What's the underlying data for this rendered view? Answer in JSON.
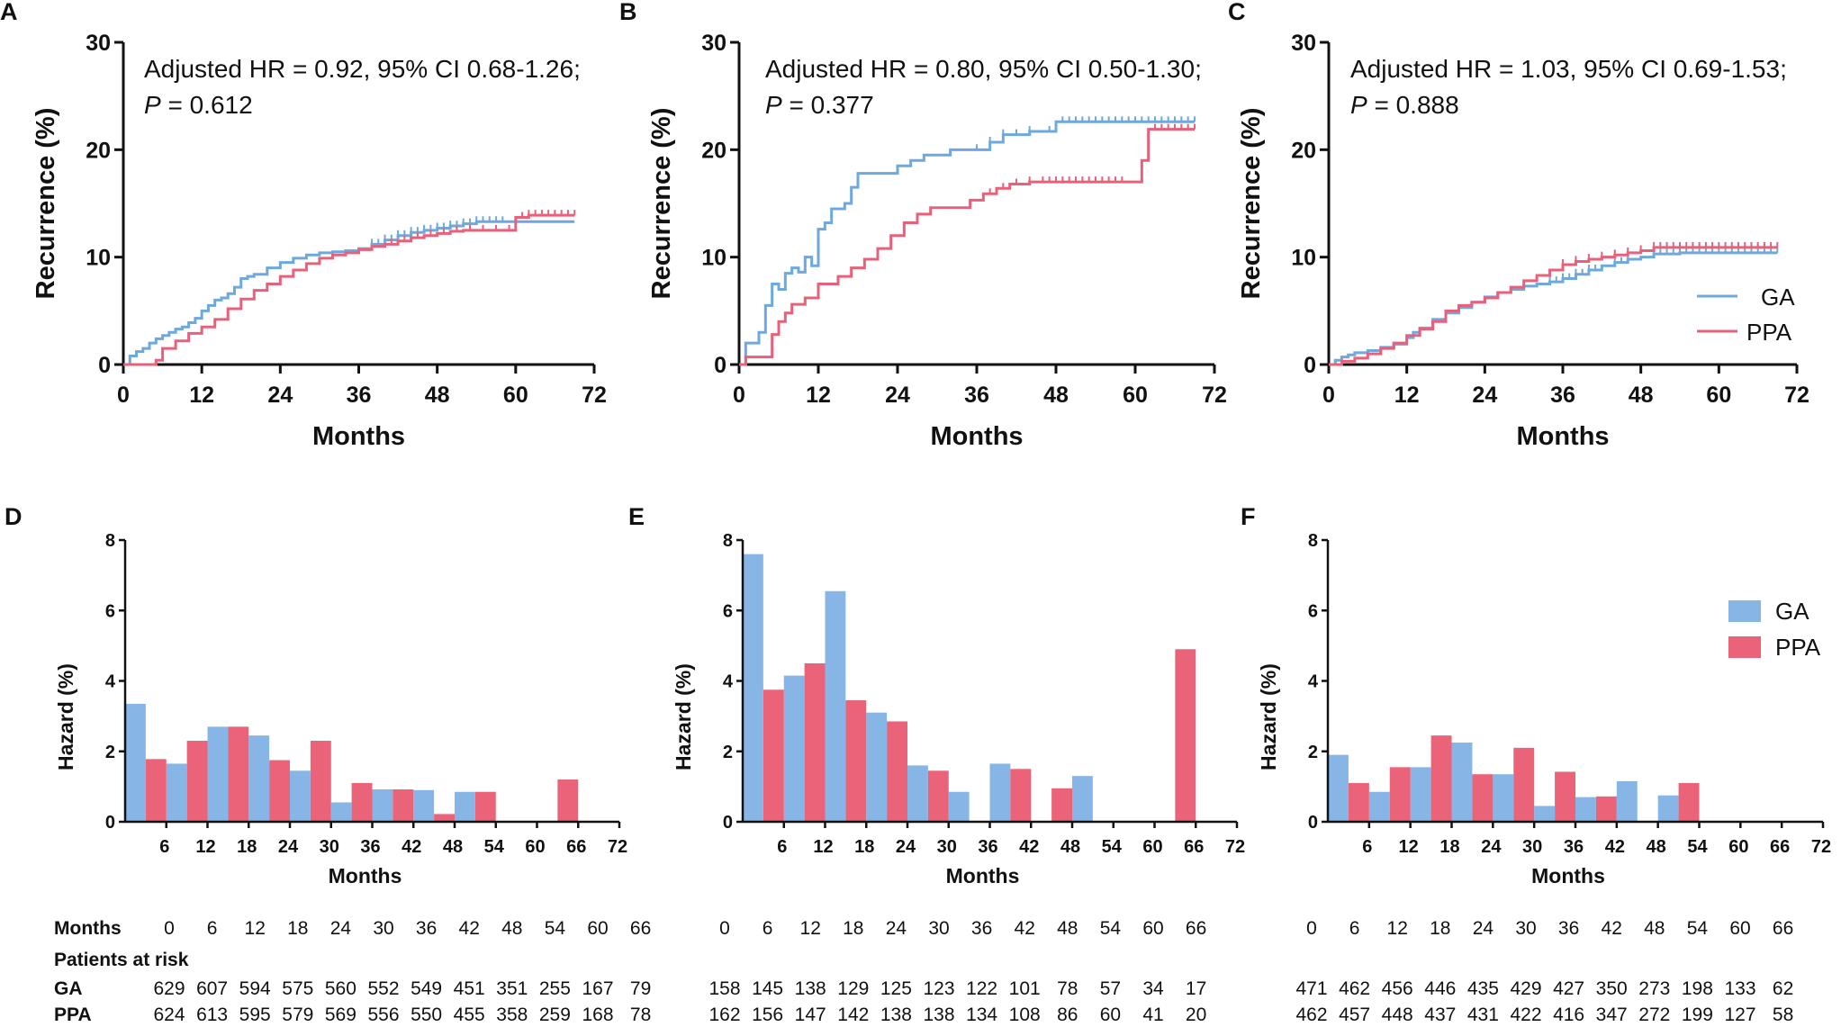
{
  "colors": {
    "ga": "#6FA8DC",
    "ppa": "#E8607A",
    "ga_bar": "#87B6E6",
    "ppa_bar": "#EB6378",
    "axis": "#111111"
  },
  "legend": {
    "ga_label": "GA",
    "ppa_label": "PPA"
  },
  "chart_data": [
    {
      "panel": "A",
      "type": "line",
      "title": "",
      "xlabel": "Months",
      "ylabel": "Recurrence (%)",
      "xlim": [
        0,
        72
      ],
      "ylim": [
        0,
        30
      ],
      "xticks": [
        0,
        12,
        24,
        36,
        48,
        60,
        72
      ],
      "yticks": [
        0,
        10,
        20,
        30
      ],
      "annotation": {
        "line1": "Adjusted HR = 0.92, 95% CI 0.68-1.26;",
        "p_label": "P",
        "p_rest": " = 0.612"
      },
      "series": [
        {
          "name": "GA",
          "step": true,
          "x": [
            0,
            1,
            2,
            3,
            4,
            5,
            6,
            7,
            8,
            9,
            10,
            11,
            12,
            13,
            14,
            15,
            16,
            17,
            18,
            19,
            20,
            22,
            24,
            26,
            28,
            30,
            32,
            34,
            36,
            38,
            40,
            42,
            44,
            46,
            48,
            50,
            52,
            54,
            56,
            58,
            60,
            63,
            66,
            69
          ],
          "y": [
            0,
            0.8,
            1.2,
            1.5,
            2,
            2.4,
            2.7,
            3,
            3.3,
            3.5,
            3.9,
            4.3,
            5,
            5.5,
            6,
            6.2,
            6.6,
            7.2,
            8,
            8.2,
            8.4,
            9,
            9.5,
            9.9,
            10.2,
            10.4,
            10.5,
            10.6,
            10.8,
            11.2,
            11.6,
            12,
            12.3,
            12.5,
            12.7,
            12.9,
            13.1,
            13.3,
            13.3,
            13.3,
            13.3,
            13.3,
            13.3,
            13.3
          ],
          "censored": [
            38,
            39,
            40,
            41,
            42,
            43,
            44,
            45,
            46,
            47,
            48,
            49,
            50,
            51,
            52,
            53,
            54,
            55,
            56,
            57,
            58
          ]
        },
        {
          "name": "PPA",
          "step": true,
          "x": [
            0,
            5,
            6,
            8,
            10,
            12,
            14,
            16,
            18,
            20,
            22,
            24,
            26,
            28,
            30,
            32,
            34,
            36,
            38,
            40,
            42,
            44,
            46,
            48,
            50,
            52,
            56,
            60,
            62,
            69
          ],
          "y": [
            0,
            0.4,
            1.5,
            2.2,
            2.9,
            3.5,
            4.2,
            5.2,
            6.1,
            6.9,
            7.5,
            8.2,
            8.8,
            9.4,
            9.9,
            10.2,
            10.4,
            10.7,
            11,
            11.2,
            11.5,
            11.8,
            12,
            12.2,
            12.4,
            12.5,
            12.5,
            13.7,
            13.9,
            13.9
          ],
          "censored": [
            41,
            43,
            45,
            47,
            49,
            51,
            53,
            55,
            57,
            59,
            61,
            62,
            63,
            64,
            65,
            66,
            67,
            68,
            69
          ]
        }
      ]
    },
    {
      "panel": "B",
      "type": "line",
      "title": "",
      "xlabel": "Months",
      "ylabel": "Recurrence (%)",
      "xlim": [
        0,
        72
      ],
      "ylim": [
        0,
        30
      ],
      "xticks": [
        0,
        12,
        24,
        36,
        48,
        60,
        72
      ],
      "yticks": [
        0,
        10,
        20,
        30
      ],
      "annotation": {
        "line1": "Adjusted HR = 0.80, 95% CI 0.50-1.30;",
        "p_label": "P",
        "p_rest": " = 0.377"
      },
      "series": [
        {
          "name": "GA",
          "step": true,
          "x": [
            0,
            1,
            3,
            4,
            5,
            6,
            7,
            8,
            9,
            10,
            11,
            12,
            13,
            14,
            16,
            17,
            18,
            20,
            24,
            26,
            28,
            32,
            36,
            38,
            40,
            44,
            48,
            69
          ],
          "y": [
            0,
            2,
            3,
            5.5,
            7.5,
            7,
            8.5,
            9,
            8.6,
            10,
            9.2,
            12.6,
            13.2,
            14.5,
            15,
            16.5,
            17.8,
            17.8,
            18.5,
            19,
            19.5,
            20,
            20,
            20.7,
            21.4,
            21.7,
            22.6,
            22.6
          ],
          "censored": [
            36,
            38,
            40,
            42,
            44,
            47,
            49,
            50,
            51,
            52,
            53,
            54,
            55,
            56,
            57,
            58,
            59,
            60,
            61,
            62,
            63,
            64,
            65,
            66,
            67,
            68,
            69
          ]
        },
        {
          "name": "PPA",
          "step": true,
          "x": [
            0,
            1,
            5,
            6,
            7,
            8,
            10,
            12,
            15,
            17,
            19,
            21,
            23,
            25,
            27,
            29,
            31,
            35,
            37,
            39,
            41,
            44,
            46,
            61,
            62,
            69
          ],
          "y": [
            0,
            0.7,
            2.8,
            4,
            4.8,
            5.6,
            6.2,
            7.5,
            8.2,
            9,
            9.8,
            10.8,
            12,
            13.2,
            14,
            14.6,
            14.6,
            15.3,
            15.9,
            16.4,
            16.8,
            17,
            17,
            19,
            21.9,
            21.9
          ],
          "censored": [
            38,
            40,
            42,
            44,
            46,
            47,
            48,
            49,
            50,
            51,
            52,
            53,
            54,
            55,
            56,
            57,
            58,
            63,
            64,
            65,
            66,
            67,
            68,
            69
          ]
        }
      ]
    },
    {
      "panel": "C",
      "type": "line",
      "title": "",
      "xlabel": "Months",
      "ylabel": "Recurrence (%)",
      "xlim": [
        0,
        72
      ],
      "ylim": [
        0,
        30
      ],
      "xticks": [
        0,
        12,
        24,
        36,
        48,
        60,
        72
      ],
      "yticks": [
        0,
        10,
        20,
        30
      ],
      "annotation": {
        "line1": "Adjusted HR = 1.03, 95% CI 0.69-1.53;",
        "p_label": "P",
        "p_rest": " = 0.888"
      },
      "series": [
        {
          "name": "GA",
          "step": true,
          "x": [
            0,
            1,
            2,
            3,
            4,
            6,
            8,
            10,
            12,
            13,
            14,
            16,
            18,
            20,
            22,
            24,
            26,
            28,
            30,
            32,
            34,
            36,
            38,
            40,
            42,
            44,
            46,
            48,
            50,
            54,
            60,
            69
          ],
          "y": [
            0,
            0.4,
            0.7,
            0.9,
            1.1,
            1.3,
            1.6,
            1.9,
            2.5,
            3,
            3.4,
            4.2,
            4.8,
            5.3,
            5.8,
            6.3,
            6.7,
            7,
            7.3,
            7.5,
            7.7,
            8,
            8.4,
            8.8,
            9.2,
            9.5,
            9.8,
            10,
            10.3,
            10.4,
            10.4,
            10.4
          ],
          "censored": [
            34,
            35,
            36,
            37,
            38,
            39,
            40,
            41,
            44,
            45,
            46,
            50,
            51,
            52,
            53,
            54,
            55,
            56,
            57,
            58,
            59,
            60,
            61,
            62,
            63,
            64,
            65,
            66,
            67,
            68,
            69
          ]
        },
        {
          "name": "PPA",
          "step": true,
          "x": [
            0,
            2,
            4,
            6,
            8,
            10,
            12,
            14,
            16,
            18,
            20,
            22,
            24,
            26,
            28,
            30,
            32,
            34,
            36,
            38,
            40,
            42,
            44,
            46,
            48,
            50,
            69
          ],
          "y": [
            0,
            0.3,
            0.6,
            1,
            1.5,
            2,
            2.7,
            3.3,
            4,
            5,
            5.5,
            5.8,
            6.2,
            6.7,
            7.2,
            7.8,
            8.3,
            8.8,
            9.3,
            9.6,
            9.8,
            10,
            10.2,
            10.4,
            10.6,
            10.9,
            10.9
          ],
          "censored": [
            36,
            38,
            40,
            42,
            44,
            46,
            48,
            50,
            51,
            52,
            53,
            54,
            55,
            56,
            57,
            58,
            59,
            60,
            61,
            62,
            63,
            64,
            65,
            66,
            67,
            68,
            69
          ]
        }
      ]
    },
    {
      "panel": "D",
      "type": "bar",
      "title": "",
      "xlabel": "Months",
      "ylabel": "Hazard (%)",
      "ylim": [
        0,
        8
      ],
      "yticks": [
        0,
        2,
        4,
        6,
        8
      ],
      "categories": [
        "6",
        "12",
        "18",
        "24",
        "30",
        "36",
        "42",
        "48",
        "54",
        "60",
        "66",
        "72"
      ],
      "series": [
        {
          "name": "GA",
          "values": [
            3.35,
            1.65,
            2.7,
            2.45,
            1.45,
            0.55,
            0.92,
            0.9,
            0.85,
            0,
            0,
            0
          ]
        },
        {
          "name": "PPA",
          "values": [
            1.78,
            2.3,
            2.7,
            1.75,
            2.3,
            1.1,
            0.92,
            0.22,
            0.85,
            0,
            1.2,
            0
          ]
        }
      ]
    },
    {
      "panel": "E",
      "type": "bar",
      "title": "",
      "xlabel": "Months",
      "ylabel": "Hazard (%)",
      "ylim": [
        0,
        8
      ],
      "yticks": [
        0,
        2,
        4,
        6,
        8
      ],
      "categories": [
        "6",
        "12",
        "18",
        "24",
        "30",
        "36",
        "42",
        "48",
        "54",
        "60",
        "66",
        "72"
      ],
      "series": [
        {
          "name": "GA",
          "values": [
            7.6,
            4.15,
            6.55,
            3.1,
            1.6,
            0.85,
            1.65,
            0,
            1.3,
            0,
            0,
            0
          ]
        },
        {
          "name": "PPA",
          "values": [
            3.75,
            4.5,
            3.45,
            2.85,
            1.45,
            0,
            1.5,
            0.95,
            0,
            0,
            4.9,
            0
          ]
        }
      ]
    },
    {
      "panel": "F",
      "type": "bar",
      "title": "",
      "xlabel": "Months",
      "ylabel": "Hazard (%)",
      "ylim": [
        0,
        8
      ],
      "yticks": [
        0,
        2,
        4,
        6,
        8
      ],
      "categories": [
        "6",
        "12",
        "18",
        "24",
        "30",
        "36",
        "42",
        "48",
        "54",
        "60",
        "66",
        "72"
      ],
      "series": [
        {
          "name": "GA",
          "values": [
            1.9,
            0.85,
            1.55,
            2.25,
            1.35,
            0.45,
            0.7,
            1.15,
            0.75,
            0,
            0,
            0
          ]
        },
        {
          "name": "PPA",
          "values": [
            1.1,
            1.55,
            2.45,
            1.35,
            2.1,
            1.42,
            0.72,
            0,
            1.1,
            0,
            0,
            0
          ]
        }
      ]
    }
  ],
  "risk_table": {
    "months_label": "Months",
    "patients_label": "Patients at risk",
    "ga_label": "GA",
    "ppa_label": "PPA",
    "months": [
      "0",
      "6",
      "12",
      "18",
      "24",
      "30",
      "36",
      "42",
      "48",
      "54",
      "60",
      "66"
    ],
    "ga": [
      [
        "629",
        "607",
        "594",
        "575",
        "560",
        "552",
        "549",
        "451",
        "351",
        "255",
        "167",
        "79"
      ],
      [
        "158",
        "145",
        "138",
        "129",
        "125",
        "123",
        "122",
        "101",
        "78",
        "57",
        "34",
        "17"
      ],
      [
        "471",
        "462",
        "456",
        "446",
        "435",
        "429",
        "427",
        "350",
        "273",
        "198",
        "133",
        "62"
      ]
    ],
    "ppa": [
      [
        "624",
        "613",
        "595",
        "579",
        "569",
        "556",
        "550",
        "455",
        "358",
        "259",
        "168",
        "78"
      ],
      [
        "162",
        "156",
        "147",
        "142",
        "138",
        "138",
        "134",
        "108",
        "86",
        "60",
        "41",
        "20"
      ],
      [
        "462",
        "457",
        "448",
        "437",
        "431",
        "422",
        "416",
        "347",
        "272",
        "199",
        "127",
        "58"
      ]
    ]
  }
}
